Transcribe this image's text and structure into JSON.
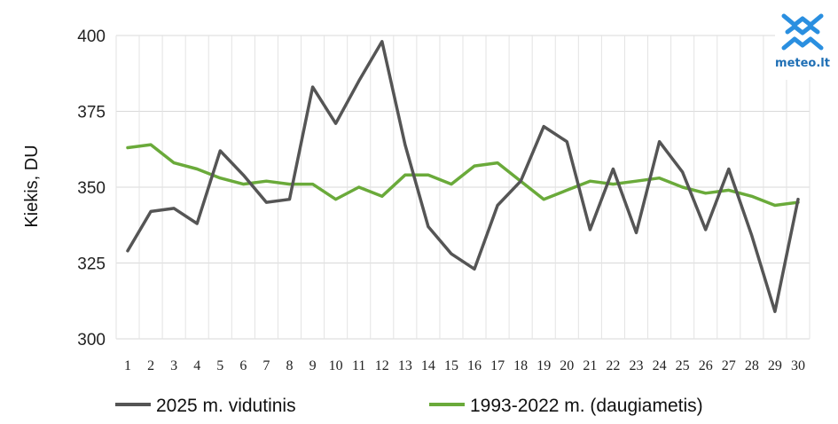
{
  "brand": {
    "logo_text": "meteo.lt",
    "logo_color": "#2a8fe0"
  },
  "chart_data": {
    "type": "line",
    "ylabel": "Kiekis, DU",
    "xlabel": "",
    "ylim": [
      300,
      400
    ],
    "yticks": [
      300,
      325,
      350,
      375,
      400
    ],
    "grid": true,
    "legend_position": "bottom",
    "categories": [
      "1",
      "2",
      "3",
      "4",
      "5",
      "6",
      "7",
      "8",
      "9",
      "10",
      "11",
      "12",
      "13",
      "14",
      "15",
      "16",
      "17",
      "18",
      "19",
      "20",
      "21",
      "22",
      "23",
      "24",
      "25",
      "26",
      "27",
      "28",
      "29",
      "30"
    ],
    "series": [
      {
        "name": "2025 m. vidutinis",
        "color": "#555555",
        "values": [
          329,
          342,
          343,
          338,
          362,
          354,
          345,
          346,
          383,
          371,
          385,
          398,
          364,
          337,
          328,
          323,
          344,
          352,
          370,
          365,
          336,
          356,
          335,
          365,
          355,
          336,
          356,
          334,
          309,
          346
        ]
      },
      {
        "name": "1993-2022 m. (daugiametis)",
        "color": "#6aaa3a",
        "values": [
          363,
          364,
          358,
          356,
          353,
          351,
          352,
          351,
          351,
          346,
          350,
          347,
          354,
          354,
          351,
          357,
          358,
          352,
          346,
          349,
          352,
          351,
          352,
          353,
          350,
          348,
          349,
          347,
          344,
          345
        ]
      }
    ]
  }
}
